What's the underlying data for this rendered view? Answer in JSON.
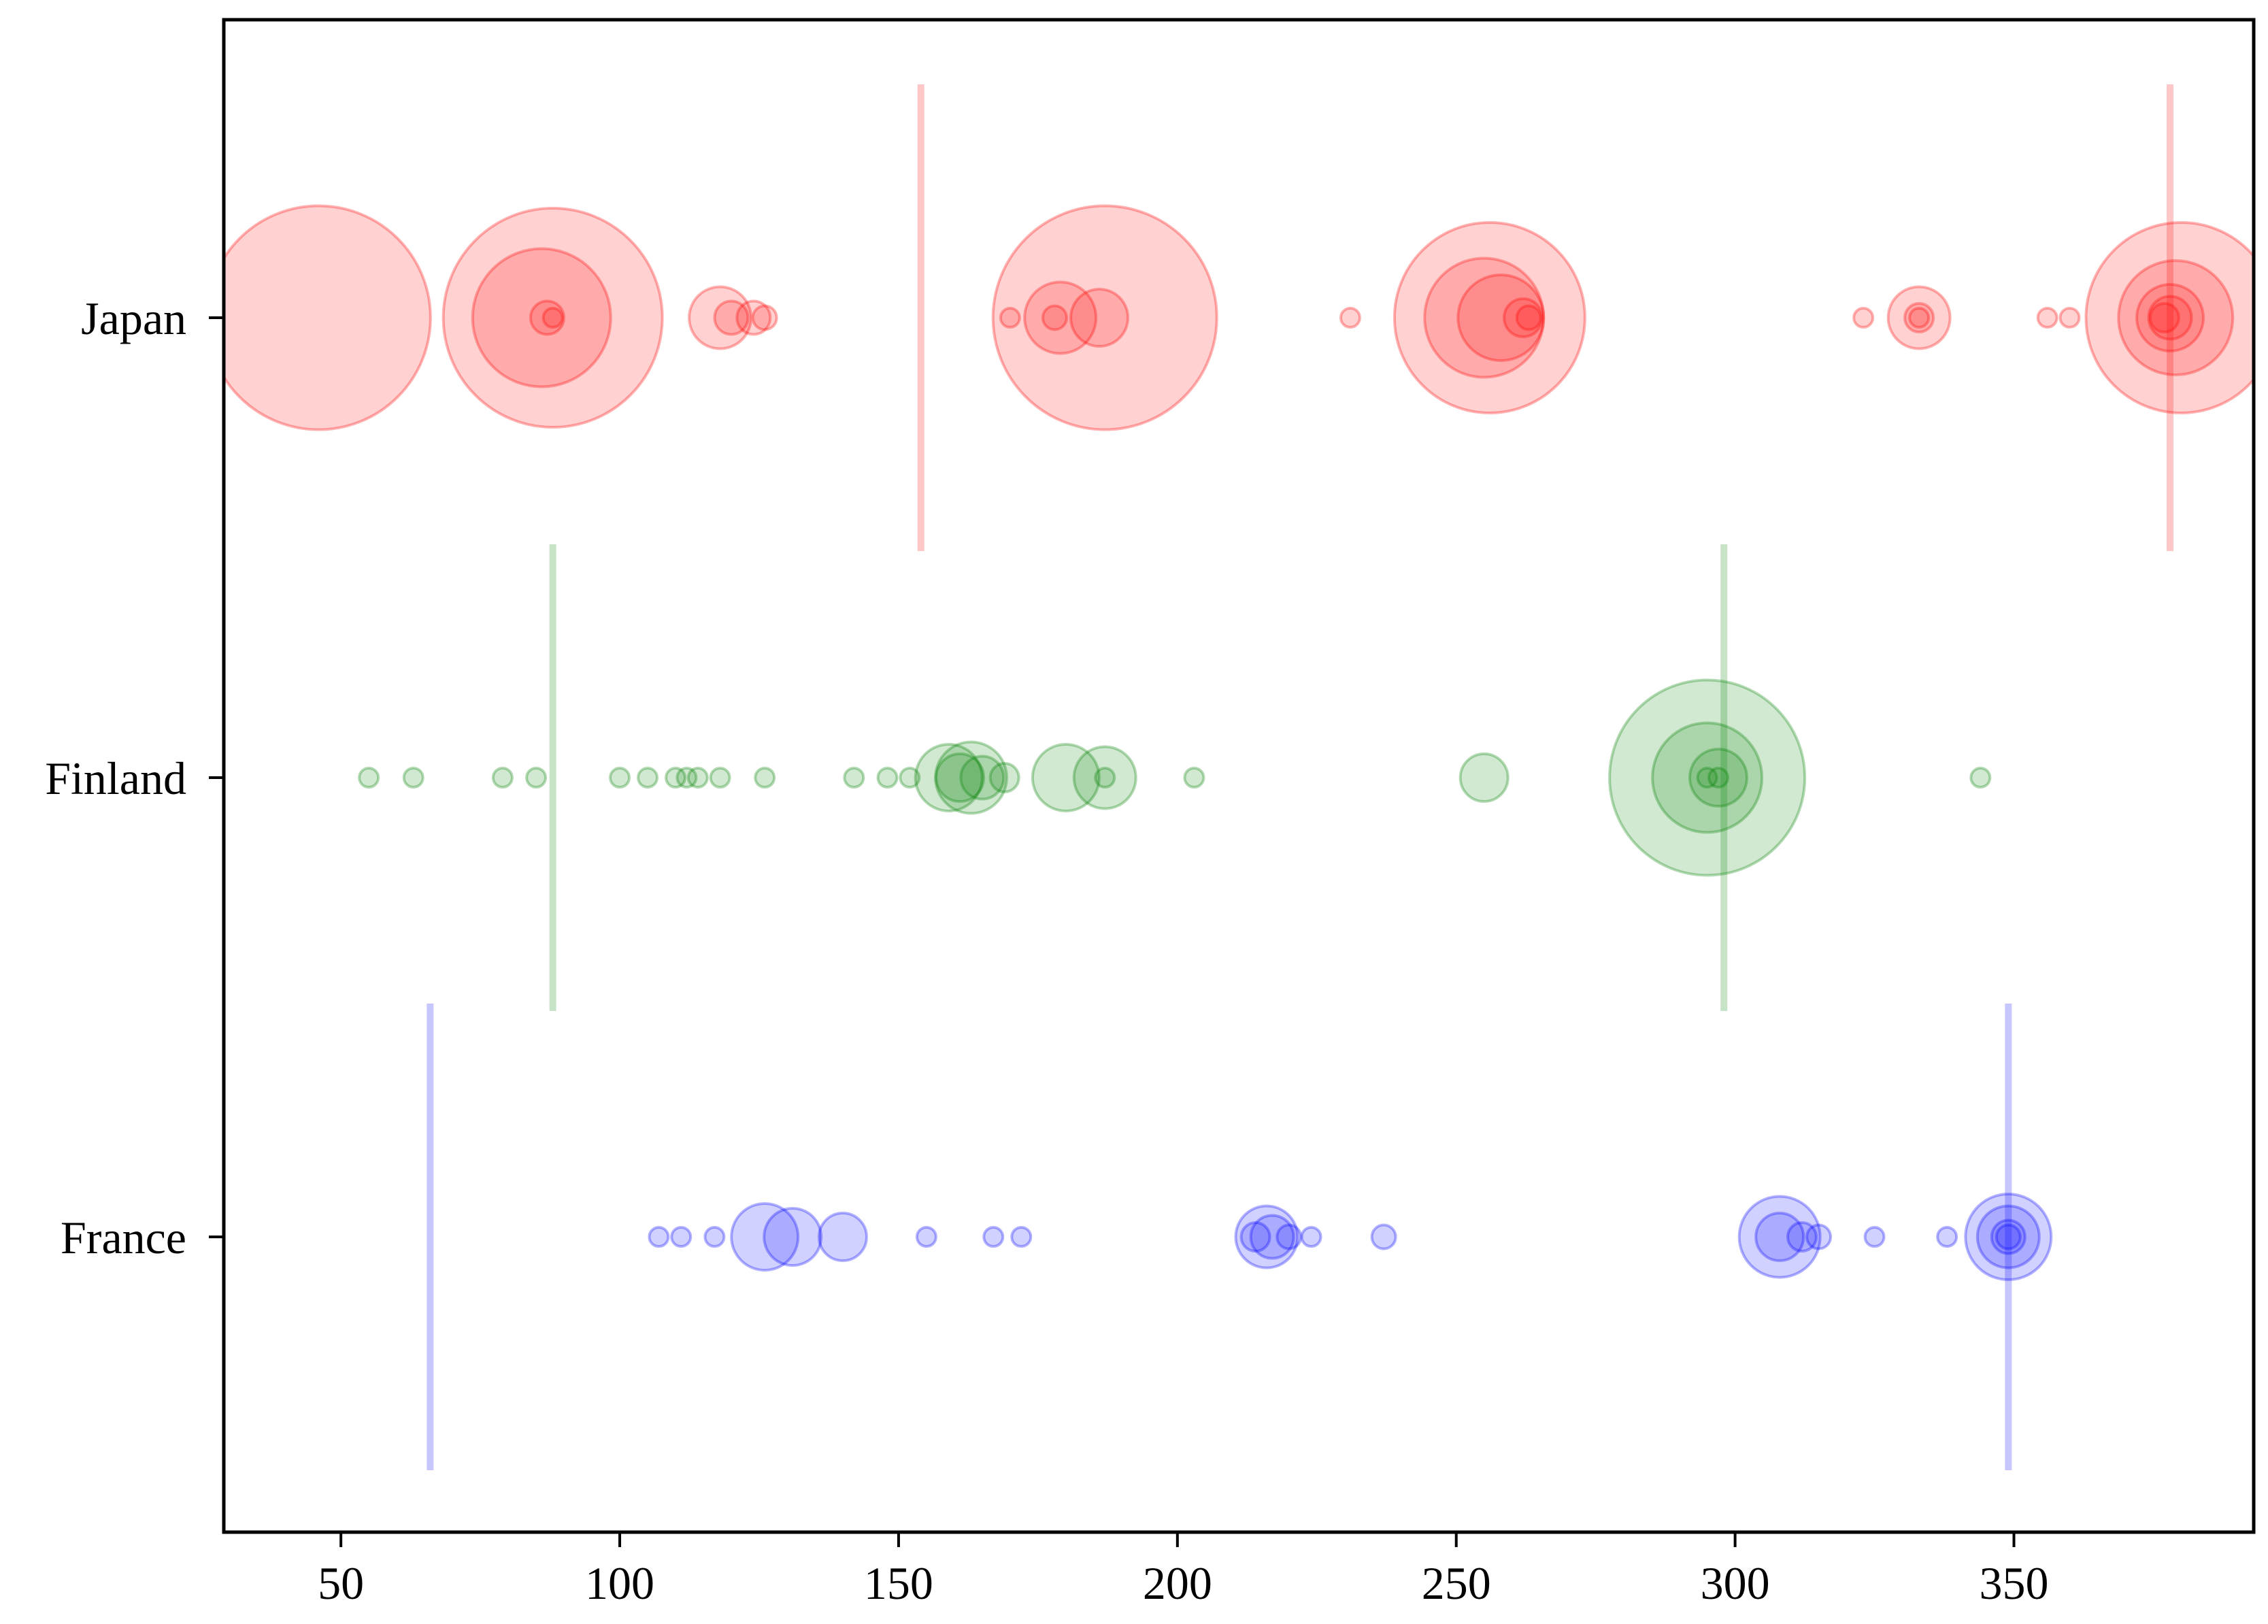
{
  "chart_data": {
    "type": "scatter",
    "subtype": "bubble-strip",
    "title": "",
    "xlabel": "",
    "ylabel": "",
    "xlim": [
      29,
      393
    ],
    "x_ticks": [
      50,
      100,
      150,
      200,
      250,
      300,
      350
    ],
    "categories": [
      "Japan",
      "Finland",
      "France"
    ],
    "series": [
      {
        "name": "Japan",
        "color": "#ff0000",
        "vlines": [
          154,
          378
        ],
        "points": [
          {
            "x": 46,
            "size": 47
          },
          {
            "x": 88,
            "size": 46
          },
          {
            "x": 86,
            "size": 29
          },
          {
            "x": 87,
            "size": 7
          },
          {
            "x": 88,
            "size": 4
          },
          {
            "x": 118,
            "size": 13
          },
          {
            "x": 120,
            "size": 7
          },
          {
            "x": 124,
            "size": 7
          },
          {
            "x": 126,
            "size": 5
          },
          {
            "x": 187,
            "size": 47
          },
          {
            "x": 179,
            "size": 15
          },
          {
            "x": 186,
            "size": 12
          },
          {
            "x": 170,
            "size": 4
          },
          {
            "x": 178,
            "size": 5
          },
          {
            "x": 231,
            "size": 4
          },
          {
            "x": 256,
            "size": 40
          },
          {
            "x": 255,
            "size": 25
          },
          {
            "x": 258,
            "size": 18
          },
          {
            "x": 262,
            "size": 8
          },
          {
            "x": 263,
            "size": 5
          },
          {
            "x": 333,
            "size": 13
          },
          {
            "x": 333,
            "size": 6
          },
          {
            "x": 323,
            "size": 4
          },
          {
            "x": 333,
            "size": 4
          },
          {
            "x": 356,
            "size": 4
          },
          {
            "x": 360,
            "size": 4
          },
          {
            "x": 380,
            "size": 40
          },
          {
            "x": 379,
            "size": 24
          },
          {
            "x": 378,
            "size": 14
          },
          {
            "x": 378,
            "size": 9
          },
          {
            "x": 377,
            "size": 6
          }
        ]
      },
      {
        "name": "Finland",
        "color": "#008000",
        "vlines": [
          88,
          298
        ],
        "points": [
          {
            "x": 55,
            "size": 4
          },
          {
            "x": 63,
            "size": 4
          },
          {
            "x": 79,
            "size": 4
          },
          {
            "x": 85,
            "size": 4
          },
          {
            "x": 100,
            "size": 4
          },
          {
            "x": 105,
            "size": 4
          },
          {
            "x": 110,
            "size": 4
          },
          {
            "x": 112,
            "size": 4
          },
          {
            "x": 114,
            "size": 4
          },
          {
            "x": 118,
            "size": 4
          },
          {
            "x": 126,
            "size": 4
          },
          {
            "x": 142,
            "size": 4
          },
          {
            "x": 148,
            "size": 4
          },
          {
            "x": 152,
            "size": 4
          },
          {
            "x": 159,
            "size": 14
          },
          {
            "x": 163,
            "size": 15
          },
          {
            "x": 161,
            "size": 10
          },
          {
            "x": 165,
            "size": 9
          },
          {
            "x": 169,
            "size": 6
          },
          {
            "x": 180,
            "size": 14
          },
          {
            "x": 187,
            "size": 13
          },
          {
            "x": 187,
            "size": 4
          },
          {
            "x": 203,
            "size": 4
          },
          {
            "x": 255,
            "size": 10
          },
          {
            "x": 295,
            "size": 41
          },
          {
            "x": 295,
            "size": 23
          },
          {
            "x": 297,
            "size": 12
          },
          {
            "x": 297,
            "size": 4
          },
          {
            "x": 295,
            "size": 4
          },
          {
            "x": 344,
            "size": 4
          }
        ]
      },
      {
        "name": "France",
        "color": "#0000ff",
        "vlines": [
          66,
          349
        ],
        "points": [
          {
            "x": 107,
            "size": 4
          },
          {
            "x": 111,
            "size": 4
          },
          {
            "x": 117,
            "size": 4
          },
          {
            "x": 126,
            "size": 14
          },
          {
            "x": 131,
            "size": 12
          },
          {
            "x": 140,
            "size": 10
          },
          {
            "x": 155,
            "size": 4
          },
          {
            "x": 167,
            "size": 4
          },
          {
            "x": 172,
            "size": 4
          },
          {
            "x": 216,
            "size": 13
          },
          {
            "x": 217,
            "size": 9
          },
          {
            "x": 214,
            "size": 6
          },
          {
            "x": 220,
            "size": 5
          },
          {
            "x": 224,
            "size": 4
          },
          {
            "x": 237,
            "size": 5
          },
          {
            "x": 308,
            "size": 17
          },
          {
            "x": 308,
            "size": 10
          },
          {
            "x": 312,
            "size": 6
          },
          {
            "x": 315,
            "size": 5
          },
          {
            "x": 325,
            "size": 4
          },
          {
            "x": 338,
            "size": 4
          },
          {
            "x": 349,
            "size": 18
          },
          {
            "x": 349,
            "size": 13
          },
          {
            "x": 349,
            "size": 7
          },
          {
            "x": 349,
            "size": 5
          }
        ]
      }
    ]
  }
}
